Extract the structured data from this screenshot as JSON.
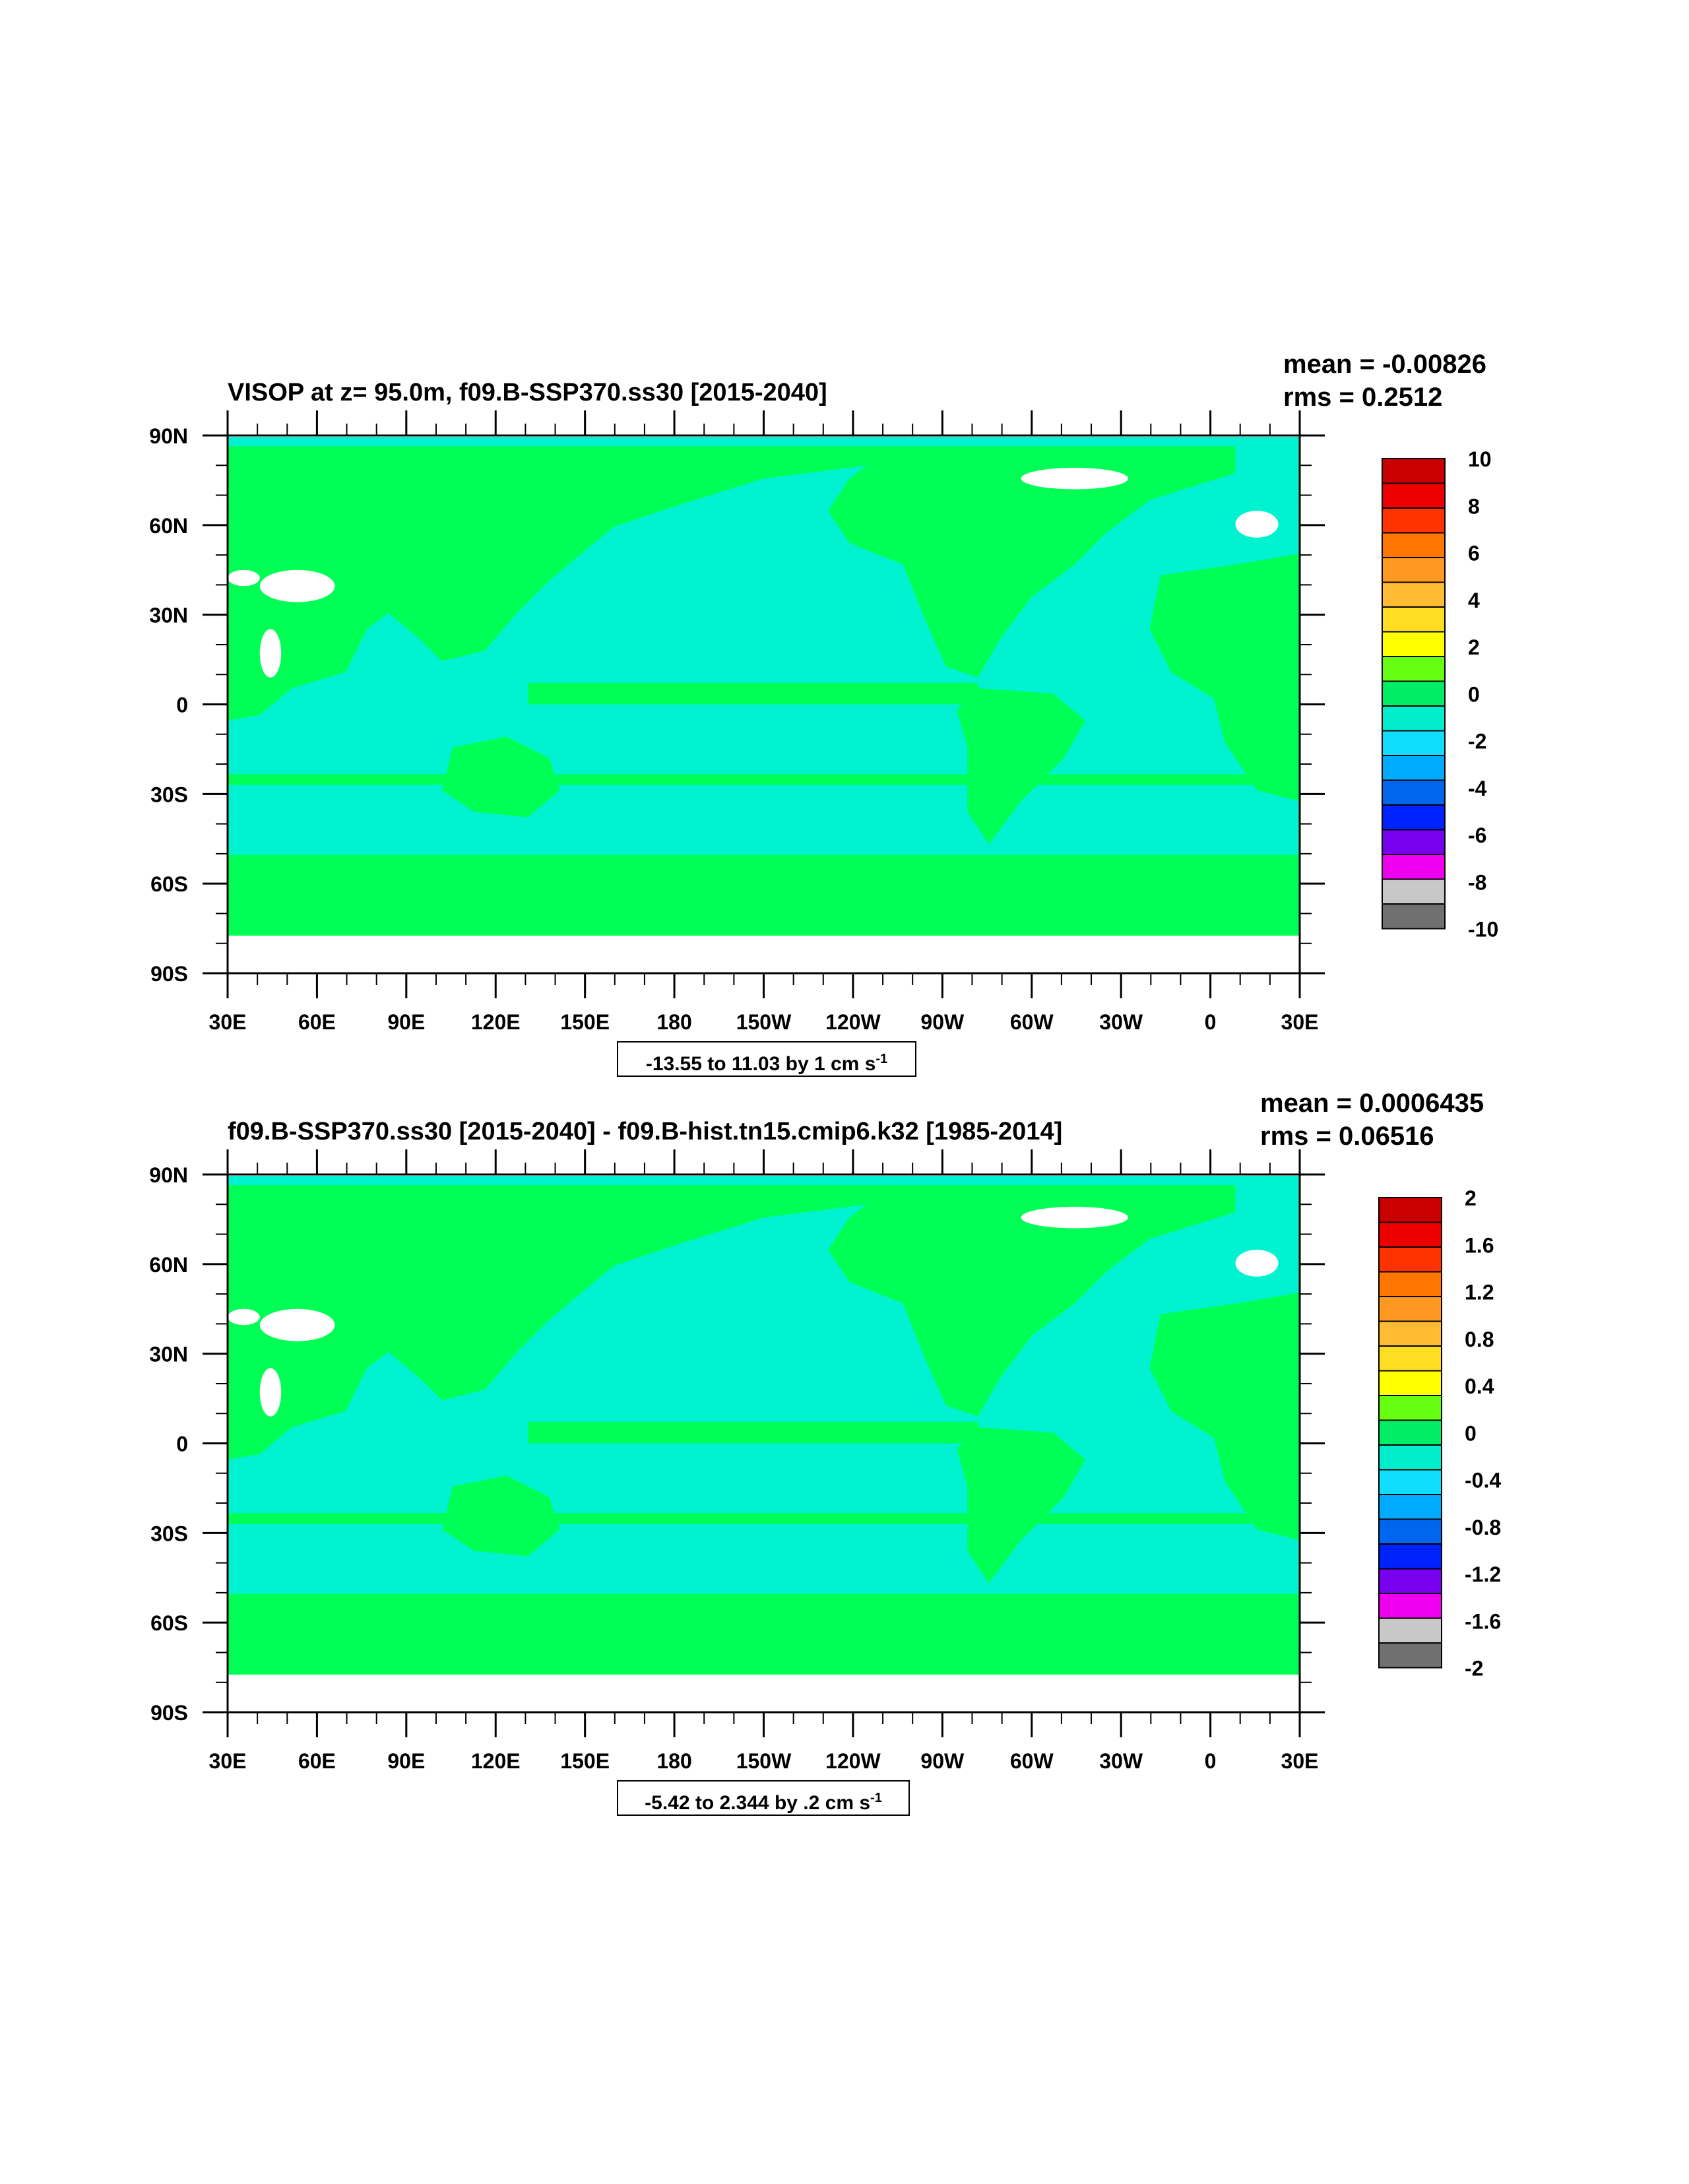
{
  "panels": [
    {
      "id": "top",
      "title": "VISOP at z=  95.0m, f09.B-SSP370.ss30 [2015-2040]",
      "mean": "mean = -0.00826",
      "rms": "rms = 0.2512",
      "range": "-13.55 to 11.03 by 1 cm s",
      "range_sup": "-1",
      "colorbar_labels": [
        "10",
        "8",
        "6",
        "4",
        "2",
        "0",
        "-2",
        "-4",
        "-6",
        "-8",
        "-10"
      ]
    },
    {
      "id": "bottom",
      "title": "f09.B-SSP370.ss30 [2015-2040] - f09.B-hist.tn15.cmip6.k32 [1985-2014]",
      "mean": "mean = 0.0006435",
      "rms": "rms = 0.06516",
      "range": "-5.42 to 2.344 by .2 cm s",
      "range_sup": "-1",
      "colorbar_labels": [
        "2",
        "1.6",
        "1.2",
        "0.8",
        "0.4",
        "0",
        "-0.4",
        "-0.8",
        "-1.2",
        "-1.6",
        "-2"
      ]
    }
  ],
  "lat_labels": [
    "90N",
    "60N",
    "30N",
    "0",
    "30S",
    "60S",
    "90S"
  ],
  "lon_labels": [
    "30E",
    "60E",
    "90E",
    "120E",
    "150E",
    "180",
    "150W",
    "120W",
    "90W",
    "60W",
    "30W",
    "0",
    "30E"
  ],
  "colors": {
    "land": "#00ff55",
    "ocean_neg": "#00f2d0",
    "ocean_neg2": "#18e6ff",
    "missing": "#ffffff",
    "colorbar": [
      "#c80000",
      "#ee0000",
      "#ff3300",
      "#ff7700",
      "#ff9922",
      "#ffbb33",
      "#ffdd22",
      "#ffff00",
      "#66ff11",
      "#00ee66",
      "#00eecc",
      "#11ddff",
      "#00aaff",
      "#0066ee",
      "#0022ff",
      "#7700ee",
      "#ee00ee",
      "#c8c8c8",
      "#707070"
    ]
  }
}
